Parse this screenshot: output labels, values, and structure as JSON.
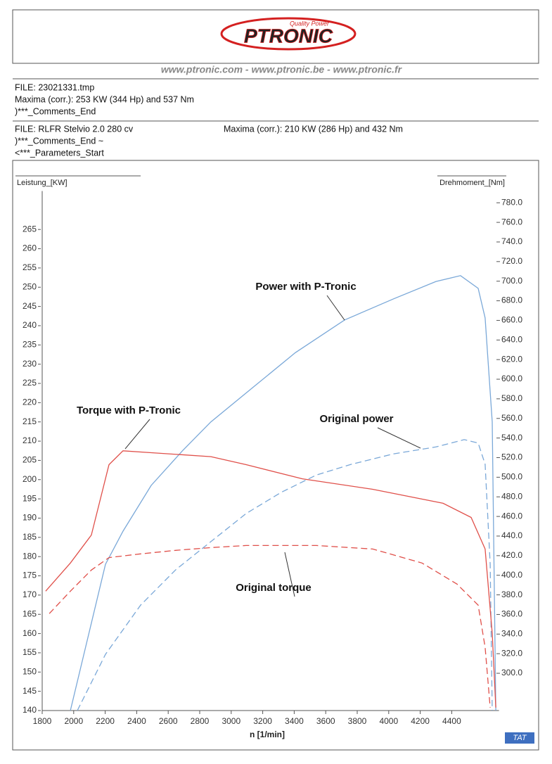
{
  "header": {
    "tagline": "Quality Power",
    "logo": "PTRONIC",
    "websites": "www.ptronic.com - www.ptronic.be - www.ptronic.fr",
    "file1": [
      "FILE: 23021331.tmp",
      "Maxima (corr.): 253 KW (344 Hp) and   537 Nm",
      ")***_Comments_End"
    ],
    "file2": [
      "FILE: RLFR  Stelvio  2.0 280 cv",
      "Maxima (corr.): 210 KW (286 Hp) and 432 Nm",
      ")***_Comments_End ~",
      "<***_Parameters_Start"
    ],
    "badge": "TAT"
  },
  "chart_data": {
    "type": "line",
    "y_label": "Leistung_[KW]",
    "y2_label": "Drehmoment_[Nm]",
    "x_label": "n  [1/min]",
    "xlim": [
      1800,
      4700
    ],
    "xticks": [
      1800,
      2000,
      2200,
      2400,
      2600,
      2800,
      3000,
      3200,
      3400,
      3600,
      3800,
      4000,
      4200,
      4400
    ],
    "ylim": [
      140,
      275
    ],
    "yticks": [
      140,
      145,
      150,
      155,
      160,
      165,
      170,
      175,
      180,
      185,
      190,
      195,
      200,
      205,
      210,
      215,
      220,
      225,
      230,
      235,
      240,
      245,
      250,
      255,
      260,
      265
    ],
    "y2lim": [
      262,
      792
    ],
    "y2ticks": [
      {
        "value": 300,
        "label": "300.0"
      },
      {
        "value": 320,
        "label": "320.0"
      },
      {
        "value": 340,
        "label": "340.0"
      },
      {
        "value": 360,
        "label": "360.0"
      },
      {
        "value": 380,
        "label": "380.0"
      },
      {
        "value": 400,
        "label": "400.0"
      },
      {
        "value": 420,
        "label": "420.0"
      },
      {
        "value": 440,
        "label": "440.0"
      },
      {
        "value": 460,
        "label": "460.0"
      },
      {
        "value": 480,
        "label": "480.0"
      },
      {
        "value": 500,
        "label": "500.0"
      },
      {
        "value": 520,
        "label": "520.0"
      },
      {
        "value": 540,
        "label": "540.0"
      },
      {
        "value": 560,
        "label": "560.0"
      },
      {
        "value": 580,
        "label": "580.0"
      },
      {
        "value": 600,
        "label": "600.0"
      },
      {
        "value": 620,
        "label": "620.0"
      },
      {
        "value": 640,
        "label": "640.0"
      },
      {
        "value": 660,
        "label": "660.0"
      },
      {
        "value": 680,
        "label": "680.0"
      },
      {
        "value": 700,
        "label": "700.0"
      },
      {
        "value": 720,
        "label": "720.0"
      },
      {
        "value": 740,
        "label": "740.0"
      },
      {
        "value": 760,
        "label": "760.0"
      },
      {
        "value": 780,
        "label": "780.0"
      }
    ],
    "series": [
      {
        "name": "Power with P-Tronic",
        "color": "#7aa8d8",
        "axis": "y",
        "dashed": false,
        "x": [
          1979,
          2202,
          2313,
          2492,
          2693,
          2871,
          3139,
          3407,
          3720,
          4032,
          4300,
          4456,
          4568,
          4612,
          4657,
          4680
        ],
        "values": [
          140,
          178,
          186.6,
          198.5,
          207.6,
          215,
          224,
          233,
          241.5,
          247,
          251.5,
          253,
          249.7,
          242,
          215,
          140
        ]
      },
      {
        "name": "Original power",
        "color": "#7aa8d8",
        "axis": "y",
        "dashed": true,
        "x": [
          2023,
          2202,
          2425,
          2648,
          2871,
          3095,
          3318,
          3541,
          3764,
          4032,
          4300,
          4479,
          4568,
          4612,
          4644,
          4657
        ],
        "values": [
          140,
          154.6,
          167.4,
          176.6,
          183.9,
          191.2,
          196.7,
          201.2,
          204,
          206.7,
          208.5,
          210.4,
          209.5,
          204,
          178,
          140
        ]
      },
      {
        "name": "Torque with P-Tronic",
        "color": "#e0504a",
        "axis": "y2",
        "dashed": false,
        "x": [
          1822,
          1979,
          2112,
          2224,
          2313,
          2492,
          2871,
          3095,
          3452,
          3898,
          4345,
          4523,
          4612,
          4657,
          4680
        ],
        "values": [
          383.8,
          412.5,
          441,
          512.8,
          527,
          525,
          521,
          512.8,
          498.4,
          487.7,
          473.4,
          459,
          426.8,
          340.8,
          265
        ]
      },
      {
        "name": "Original torque",
        "color": "#e0504a",
        "axis": "y2",
        "dashed": true,
        "x": [
          1845,
          1979,
          2112,
          2224,
          2425,
          2648,
          2871,
          3095,
          3541,
          3898,
          4211,
          4434,
          4568,
          4612,
          4644
        ],
        "values": [
          360.9,
          383.8,
          405.3,
          418,
          421.8,
          425.4,
          428.2,
          430.4,
          430.4,
          426.8,
          412.5,
          391,
          369.5,
          326.5,
          265
        ]
      }
    ]
  }
}
